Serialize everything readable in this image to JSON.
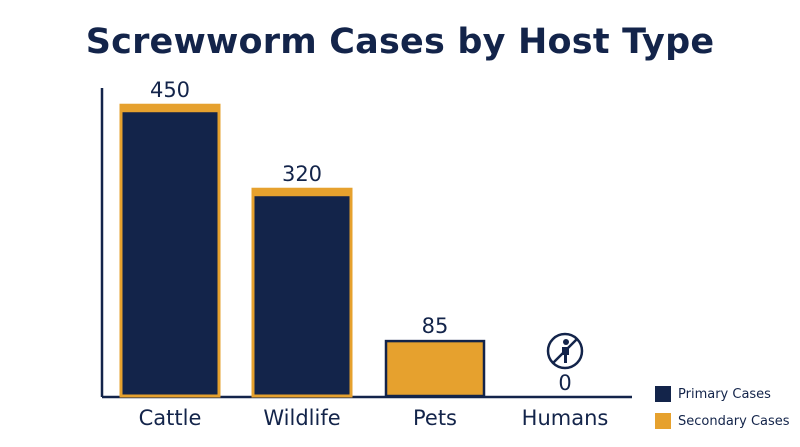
{
  "chart_data": {
    "type": "bar",
    "title": "Screwworm Cases by Host Type",
    "categories": [
      "Cattle",
      "Wildlife",
      "Pets",
      "Humans"
    ],
    "values": [
      450,
      320,
      85,
      0
    ],
    "value_labels": [
      "450",
      "320",
      "85",
      "0"
    ],
    "bar_style": [
      "primary",
      "primary",
      "secondary",
      "none"
    ],
    "ylim": [
      0,
      520
    ],
    "grid": false,
    "legend_position": "bottom-right",
    "series": [
      {
        "name": "Primary Cases",
        "color": "#13244a"
      },
      {
        "name": "Secondary Cases",
        "color": "#e6a12e"
      }
    ],
    "annotations": [
      {
        "category": "Humans",
        "icon": "no-person-icon"
      }
    ]
  },
  "colors": {
    "primary": "#13244a",
    "secondary": "#e6a12e",
    "axis": "#13244a"
  }
}
